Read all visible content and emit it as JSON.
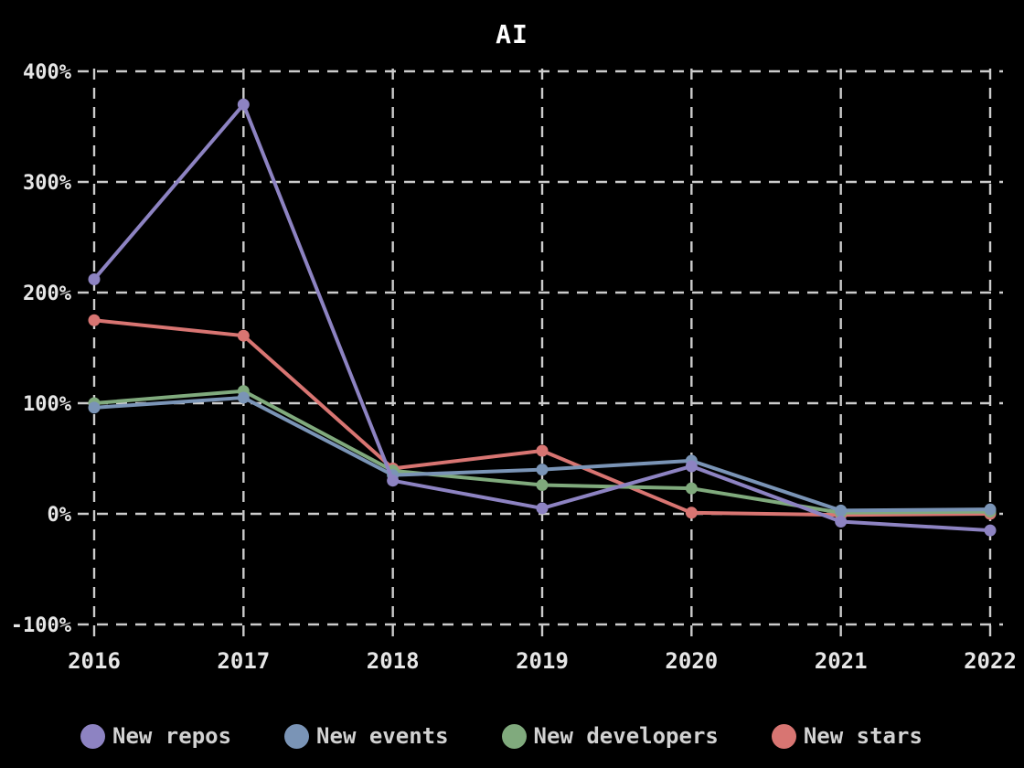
{
  "title": "AI",
  "colors": {
    "background": "#000000",
    "grid": "#cccccc",
    "axis_text": "#e6e6e6",
    "legend_text": "#d2d2d2",
    "title_text": "#ffffff"
  },
  "chart_data": {
    "type": "line",
    "title": "AI",
    "xlabel": "",
    "ylabel": "",
    "x_labels": [
      "2016",
      "2017",
      "2018",
      "2019",
      "2020",
      "2021",
      "2022"
    ],
    "y_tick_labels": [
      "400%",
      "300%",
      "200%",
      "100%",
      "0%",
      "-100%"
    ],
    "y_tick_values": [
      400,
      300,
      200,
      100,
      0,
      -100
    ],
    "ylim": [
      -100,
      400
    ],
    "grid": "dashed",
    "legend_position": "bottom",
    "marker": "circle",
    "series": [
      {
        "name": "New repos",
        "color": "#8d83c2",
        "values": [
          212,
          370,
          30,
          5,
          43,
          -7,
          -15
        ]
      },
      {
        "name": "New events",
        "color": "#7a94b6",
        "values": [
          96,
          105,
          35,
          40,
          48,
          3,
          4
        ]
      },
      {
        "name": "New developers",
        "color": "#80aa7d",
        "values": [
          100,
          111,
          39,
          26,
          23,
          1,
          2
        ]
      },
      {
        "name": "New stars",
        "color": "#d87572",
        "values": [
          175,
          161,
          41,
          57,
          1,
          -1,
          0
        ]
      }
    ]
  }
}
